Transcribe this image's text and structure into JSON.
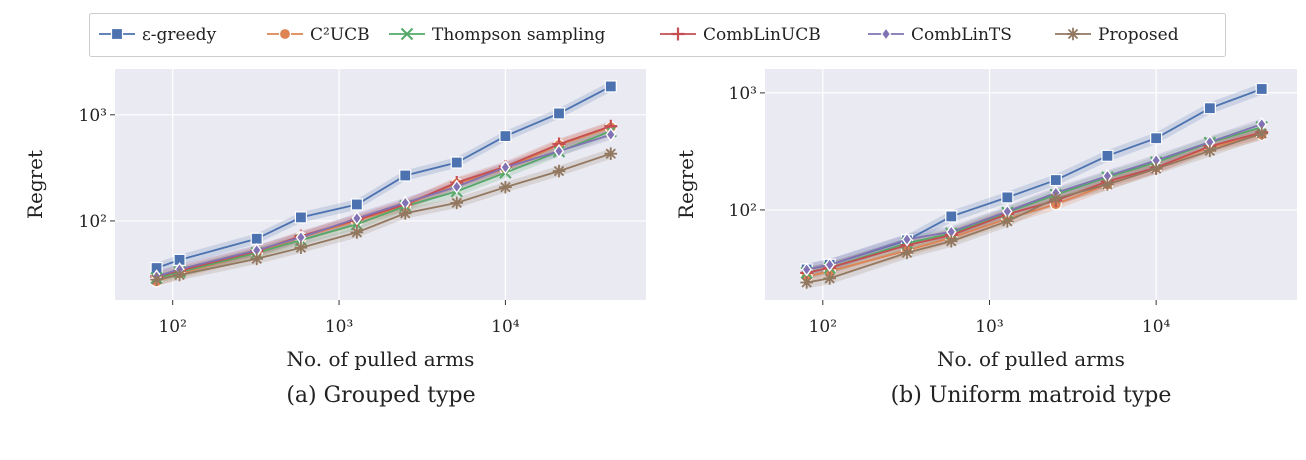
{
  "legend": [
    "ε-greedy",
    "C²UCB",
    "Thompson sampling",
    "CombLinUCB",
    "CombLinTS",
    "Proposed"
  ],
  "colors": {
    "background": "#eaeaf2",
    "eps": "#4c72b0",
    "c2ucb": "#dd8452",
    "ts": "#55a868",
    "comblinucb": "#c44e52",
    "comblints": "#8172b3",
    "proposed": "#937860"
  },
  "chart_data": [
    {
      "type": "line",
      "caption": "(a) Grouped type",
      "xlabel": "No. of pulled arms",
      "ylabel": "Regret",
      "xscale": "log",
      "yscale": "log",
      "xlim": [
        45,
        70000
      ],
      "ylim": [
        18,
        2700
      ],
      "xticks": [
        100,
        1000,
        10000
      ],
      "xtick_labels": [
        "10²",
        "10³",
        "10⁴"
      ],
      "yticks": [
        100,
        1000
      ],
      "ytick_labels": [
        "10²",
        "10³"
      ],
      "grid": true,
      "x": [
        80,
        110,
        320,
        590,
        1280,
        2500,
        5100,
        10000,
        21000,
        43000
      ],
      "series": [
        {
          "name": "ε-greedy",
          "color": "#4c72b0",
          "marker": "square",
          "values": [
            36,
            43,
            68,
            108,
            143,
            268,
            355,
            630,
            1030,
            1850
          ]
        },
        {
          "name": "C²UCB",
          "color": "#dd8452",
          "marker": "circle",
          "values": [
            27,
            32,
            50,
            70,
            100,
            140,
            225,
            310,
            520,
            760
          ]
        },
        {
          "name": "Thompson sampling",
          "color": "#55a868",
          "marker": "x",
          "values": [
            29,
            33,
            50,
            66,
            93,
            138,
            190,
            285,
            450,
            700
          ]
        },
        {
          "name": "CombLinUCB",
          "color": "#c44e52",
          "marker": "plus",
          "values": [
            30,
            34,
            52,
            72,
            103,
            143,
            230,
            325,
            530,
            780
          ]
        },
        {
          "name": "CombLinTS",
          "color": "#8172b3",
          "marker": "diamond",
          "values": [
            30,
            35,
            53,
            70,
            106,
            148,
            210,
            320,
            455,
            650
          ]
        },
        {
          "name": "Proposed",
          "color": "#937860",
          "marker": "star",
          "values": [
            28,
            31,
            44,
            56,
            78,
            118,
            148,
            208,
            295,
            430
          ]
        }
      ]
    },
    {
      "type": "line",
      "caption": "(b) Uniform matroid type",
      "xlabel": "No. of pulled arms",
      "ylabel": "Regret",
      "xscale": "log",
      "yscale": "log",
      "xlim": [
        45,
        70000
      ],
      "ylim": [
        17,
        1600
      ],
      "xticks": [
        100,
        1000,
        10000
      ],
      "xtick_labels": [
        "10²",
        "10³",
        "10⁴"
      ],
      "yticks": [
        100,
        1000
      ],
      "ytick_labels": [
        "10²",
        "10³"
      ],
      "grid": true,
      "x": [
        80,
        110,
        320,
        590,
        1280,
        2500,
        5100,
        10000,
        21000,
        43000
      ],
      "series": [
        {
          "name": "ε-greedy",
          "color": "#4c72b0",
          "marker": "square",
          "values": [
            31,
            34,
            55,
            88,
            128,
            180,
            290,
            410,
            740,
            1080
          ]
        },
        {
          "name": "C²UCB",
          "color": "#dd8452",
          "marker": "circle",
          "values": [
            27,
            30,
            45,
            58,
            84,
            112,
            165,
            230,
            340,
            440
          ]
        },
        {
          "name": "Thompson sampling",
          "color": "#55a868",
          "marker": "x",
          "values": [
            29,
            32,
            52,
            63,
            95,
            135,
            190,
            255,
            375,
            510
          ]
        },
        {
          "name": "CombLinUCB",
          "color": "#c44e52",
          "marker": "plus",
          "values": [
            29,
            32,
            50,
            61,
            92,
            120,
            175,
            230,
            350,
            460
          ]
        },
        {
          "name": "CombLinTS",
          "color": "#8172b3",
          "marker": "diamond",
          "values": [
            31,
            34,
            56,
            65,
            97,
            140,
            195,
            265,
            380,
            540
          ]
        },
        {
          "name": "Proposed",
          "color": "#937860",
          "marker": "star",
          "values": [
            24,
            26,
            43,
            54,
            80,
            125,
            165,
            225,
            320,
            450
          ]
        }
      ]
    }
  ]
}
